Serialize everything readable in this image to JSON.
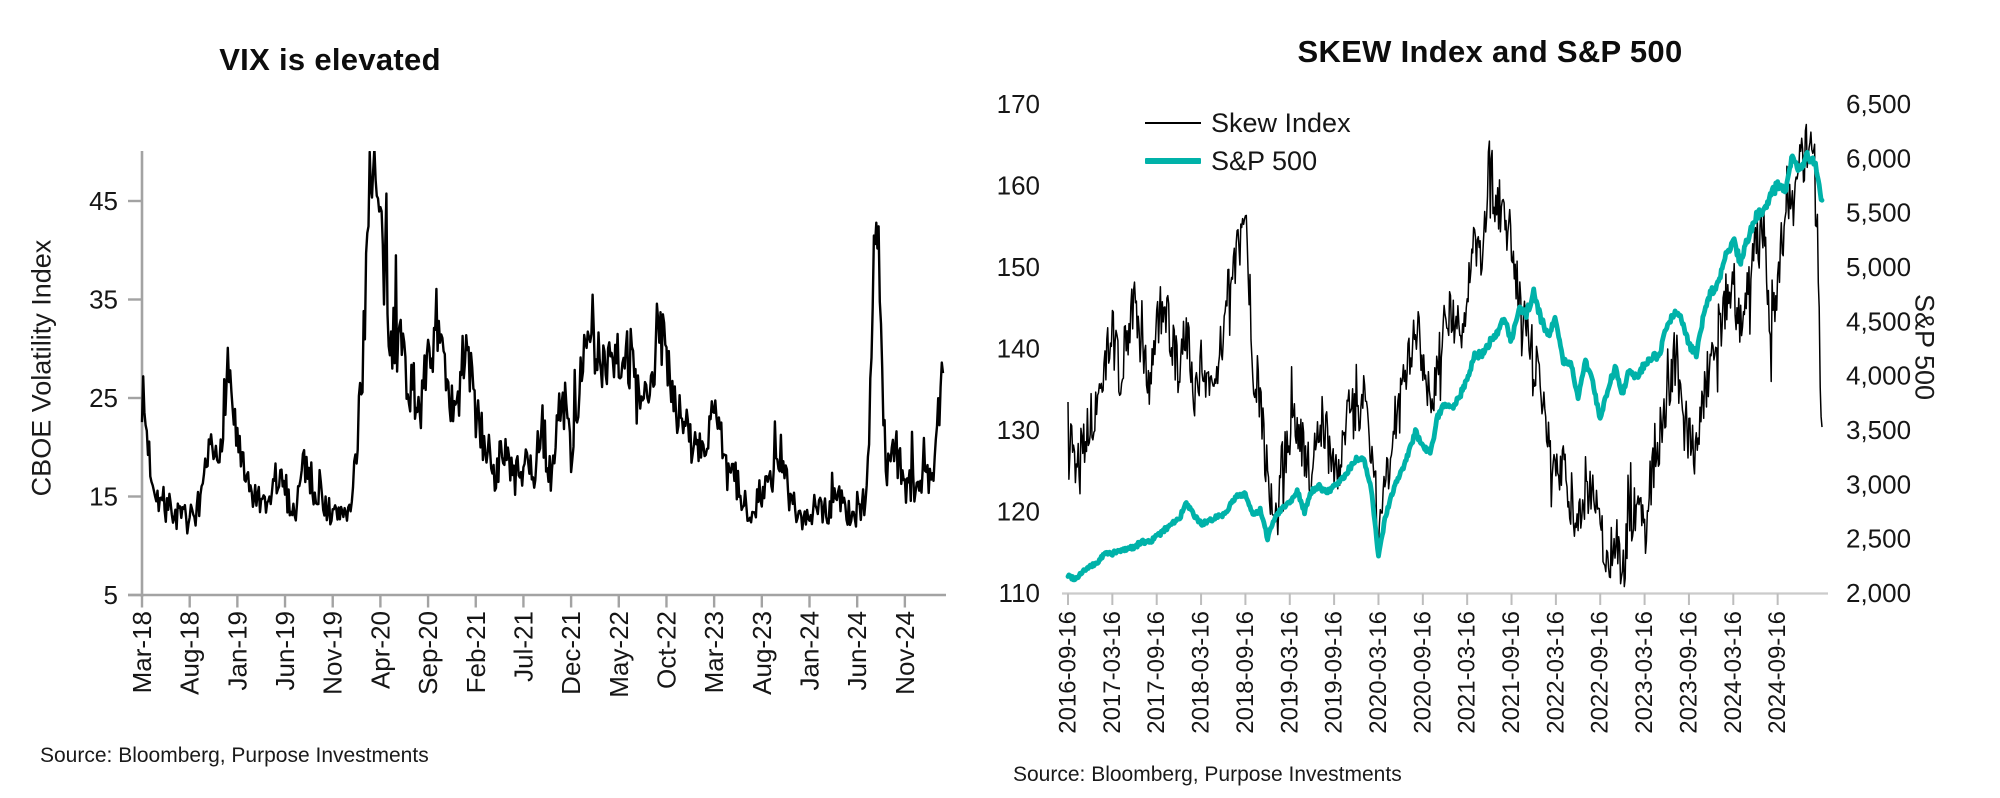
{
  "chart_data": [
    {
      "type": "line",
      "title": "VIX is elevated",
      "ylabel": "CBOE Volatility Index",
      "source": "Source: Bloomberg, Purpose Investments",
      "ylim": [
        5,
        50
      ],
      "yticks": [
        5,
        15,
        25,
        35,
        45
      ],
      "x_start": "2018-03",
      "x_end": "2025-03",
      "frequency": "monthly",
      "xticklabels": [
        "Mar-18",
        "Aug-18",
        "Jan-19",
        "Jun-19",
        "Nov-19",
        "Apr-20",
        "Sep-20",
        "Feb-21",
        "Jul-21",
        "Dec-21",
        "May-22",
        "Oct-22",
        "Mar-23",
        "Aug-23",
        "Jan-24",
        "Jun-24",
        "Nov-24"
      ],
      "series": [
        {
          "name": "VIX",
          "color": "#000000",
          "values": [
            25,
            17,
            14,
            13.5,
            12.5,
            12.5,
            12.5,
            19,
            18,
            28,
            20,
            15.5,
            14.5,
            13,
            16.5,
            15.5,
            13,
            18.5,
            15.5,
            14.5,
            12.5,
            13.5,
            13.5,
            25,
            50,
            41,
            30,
            31,
            26,
            23,
            27.5,
            33,
            24,
            22.5,
            31,
            22.5,
            20,
            17,
            19.5,
            16.5,
            17.5,
            17,
            21.5,
            16,
            26,
            19,
            27.5,
            29,
            28,
            29.5,
            29,
            28.5,
            24,
            23.5,
            30.5,
            30,
            23.5,
            21.5,
            19.5,
            19.5,
            24,
            17,
            17,
            14,
            13.5,
            15.5,
            16,
            19,
            14,
            12.8,
            13.3,
            14,
            13.2,
            15.5,
            13,
            12.6,
            15,
            45,
            17,
            19.5,
            15.5,
            16,
            16,
            17,
            29
          ]
        }
      ]
    },
    {
      "type": "line",
      "title": "SKEW Index and S&P 500",
      "source": "Source: Bloomberg, Purpose Investments",
      "x_start": "2016-09",
      "x_end": "2025-03",
      "frequency": "monthly",
      "xticklabels": [
        "2016-09-16",
        "2017-03-16",
        "2017-09-16",
        "2018-03-16",
        "2018-09-16",
        "2019-03-16",
        "2019-09-16",
        "2020-03-16",
        "2020-09-16",
        "2021-03-16",
        "2021-09-16",
        "2022-03-16",
        "2022-09-16",
        "2023-03-16",
        "2023-09-16",
        "2024-03-16",
        "2024-09-16"
      ],
      "left_axis": {
        "ticks": [
          110,
          120,
          130,
          140,
          150,
          160,
          170
        ],
        "lim": [
          110,
          173
        ]
      },
      "right_axis": {
        "label": "S&P 500",
        "ticks": [
          2000,
          2500,
          3000,
          3500,
          4000,
          4500,
          5000,
          5500,
          6000,
          6500
        ],
        "ticklabels": [
          "2,000",
          "2,500",
          "3,000",
          "3,500",
          "4,000",
          "4,500",
          "5,000",
          "5,500",
          "6,000",
          "6,500"
        ],
        "lim": [
          2000,
          6500
        ]
      },
      "legend": [
        {
          "label": "Skew Index",
          "color": "#000000"
        },
        {
          "label": "S&P 500",
          "color": "#00b2a9"
        }
      ],
      "series": [
        {
          "name": "Skew Index",
          "axis": "left",
          "color": "#000000",
          "values": [
            133,
            126,
            128,
            131,
            133,
            138,
            143,
            137,
            141,
            146,
            139,
            136,
            143,
            146,
            141,
            137,
            143,
            134,
            138,
            134,
            137,
            143,
            148,
            152,
            156,
            138,
            133,
            124,
            121,
            126,
            129,
            131,
            127,
            124,
            131,
            129,
            124,
            127,
            133,
            131,
            134,
            128,
            118,
            124,
            129,
            134,
            139,
            143,
            139,
            134,
            137,
            144,
            144,
            142,
            147,
            153,
            149,
            163,
            159,
            156,
            153,
            146,
            143,
            139,
            134,
            129,
            124,
            127,
            121,
            119,
            122,
            124,
            117,
            114,
            117,
            112,
            119,
            121,
            117,
            124,
            129,
            134,
            139,
            134,
            129,
            127,
            134,
            139,
            143,
            146,
            148,
            143,
            148,
            152,
            155,
            143,
            148,
            155,
            159,
            162,
            165,
            162,
            131
          ]
        },
        {
          "name": "S&P 500",
          "axis": "right",
          "color": "#00b2a9",
          "values": [
            2160,
            2130,
            2200,
            2240,
            2280,
            2365,
            2365,
            2385,
            2410,
            2425,
            2470,
            2470,
            2520,
            2575,
            2645,
            2675,
            2825,
            2715,
            2640,
            2650,
            2705,
            2720,
            2815,
            2900,
            2915,
            2710,
            2760,
            2505,
            2705,
            2785,
            2835,
            2945,
            2750,
            2940,
            2980,
            2925,
            2975,
            3040,
            3140,
            3230,
            3225,
            2960,
            2350,
            2720,
            2950,
            3100,
            3270,
            3480,
            3365,
            3270,
            3620,
            3755,
            3715,
            3810,
            3975,
            4180,
            4205,
            4300,
            4395,
            4520,
            4310,
            4605,
            4565,
            4765,
            4515,
            4375,
            4530,
            4130,
            4130,
            3785,
            4130,
            3955,
            3585,
            3870,
            4080,
            3840,
            4075,
            3970,
            4110,
            4170,
            4180,
            4450,
            4590,
            4510,
            4290,
            4195,
            4565,
            4770,
            4845,
            5095,
            5255,
            5035,
            5275,
            5460,
            5520,
            5650,
            5760,
            5705,
            6030,
            5880,
            6040,
            5955,
            5620
          ]
        }
      ]
    }
  ]
}
